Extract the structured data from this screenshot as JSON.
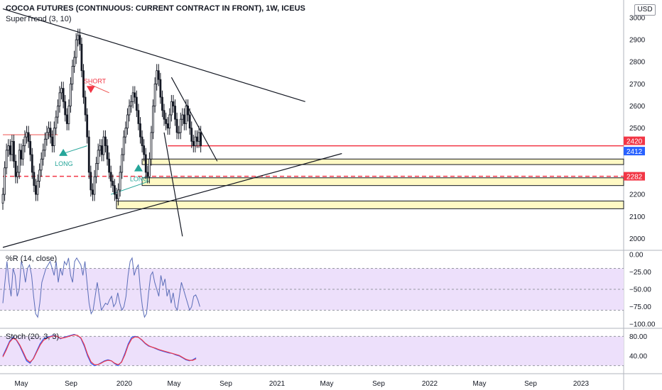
{
  "header": {
    "title": "COCOA FUTURES (CONTINUOUS: CURRENT CONTRACT IN FRONT), 1W, ICEUS",
    "indicator": "SuperTrend (3, 10)",
    "currency": "USD"
  },
  "colors": {
    "up": "#26a69a",
    "down": "#ef5350",
    "candle": "#131722",
    "willr": "#5b6db8",
    "stoch_k": "#2962ff",
    "stoch_d": "#f23645",
    "band": "#ede0fb"
  },
  "chart_data": [
    {
      "type": "candlestick",
      "pane": "price",
      "ylim": [
        1950,
        3080
      ],
      "yticks": [
        2000,
        2100,
        2200,
        2300,
        2400,
        2500,
        2600,
        2700,
        2800,
        2900,
        3000
      ],
      "ytick_labels": [
        "2000",
        "2100",
        "2200",
        "",
        "",
        "2500",
        "2600",
        "2700",
        "2800",
        "2900",
        "3000"
      ],
      "xaxis_labels": [
        "May",
        "Sep",
        "2020",
        "May",
        "Sep",
        "2021",
        "May",
        "Sep",
        "2022",
        "May",
        "Sep",
        "2023"
      ],
      "price_labels": [
        {
          "value": 2420,
          "label": "2420",
          "color": "#f23645"
        },
        {
          "value": 2412,
          "label": "2412",
          "color": "#2962ff"
        },
        {
          "value": 2282,
          "label": "2282",
          "color": "#f23645"
        }
      ],
      "closes": [
        2200,
        2320,
        2400,
        2420,
        2380,
        2440,
        2350,
        2280,
        2300,
        2400,
        2360,
        2420,
        2460,
        2480,
        2440,
        2380,
        2300,
        2240,
        2200,
        2260,
        2310,
        2360,
        2400,
        2450,
        2480,
        2500,
        2460,
        2420,
        2500,
        2550,
        2600,
        2660,
        2680,
        2620,
        2560,
        2520,
        2600,
        2700,
        2780,
        2820,
        2900,
        2920,
        2880,
        2760,
        2640,
        2560,
        2460,
        2300,
        2220,
        2200,
        2280,
        2340,
        2400,
        2420,
        2380,
        2460,
        2420,
        2360,
        2300,
        2260,
        2240,
        2200,
        2180,
        2220,
        2300,
        2380,
        2460,
        2500,
        2560,
        2600,
        2620,
        2660,
        2640,
        2580,
        2520,
        2460,
        2420,
        2380,
        2300,
        2280,
        2360,
        2480,
        2600,
        2700,
        2760,
        2720,
        2640,
        2580,
        2540,
        2520,
        2500,
        2560,
        2620,
        2600,
        2540,
        2480,
        2480,
        2540,
        2560,
        2520,
        2600,
        2560,
        2500,
        2440,
        2420,
        2460,
        2440,
        2480,
        2420
      ],
      "supertrend": [
        {
          "x": 0,
          "v": 2470,
          "trend": "down"
        },
        {
          "x": 30,
          "v": 2470,
          "trend": "down"
        },
        {
          "x": 31,
          "v": 2380,
          "trend": "up"
        },
        {
          "x": 46,
          "v": 2420,
          "trend": "up"
        },
        {
          "x": 47,
          "v": 2700,
          "trend": "down"
        },
        {
          "x": 58,
          "v": 2660,
          "trend": "down"
        },
        {
          "x": 59,
          "v": 2200,
          "trend": "up"
        },
        {
          "x": 80,
          "v": 2260,
          "trend": "up"
        }
      ],
      "signals": [
        {
          "x": 33,
          "v": 2400,
          "label": "LONG",
          "type": "long"
        },
        {
          "x": 48,
          "v": 2710,
          "label": "SHORT",
          "type": "short"
        },
        {
          "x": 74,
          "v": 2330,
          "label": "LONG",
          "type": "long"
        }
      ],
      "trendlines": [
        {
          "from": [
            0,
            3040
          ],
          "to": [
            165,
            2620
          ]
        },
        {
          "from": [
            0,
            1960
          ],
          "to": [
            185,
            2385
          ]
        },
        {
          "from": [
            92,
            2730
          ],
          "to": [
            117,
            2350
          ]
        },
        {
          "from": [
            88,
            2480
          ],
          "to": [
            98,
            2010
          ]
        }
      ],
      "levels": [
        {
          "y": 2420,
          "from": 90,
          "to": 190,
          "color": "#f23645",
          "style": "solid"
        },
        {
          "y": 2282,
          "from": 0,
          "to": 190,
          "color": "#f23645",
          "style": "dashed"
        }
      ],
      "zones": [
        {
          "y1": 2335,
          "y2": 2360,
          "from": 76,
          "to": 190
        },
        {
          "y1": 2240,
          "y2": 2275,
          "from": 76,
          "to": 190
        },
        {
          "y1": 2135,
          "y2": 2170,
          "from": 62,
          "to": 190
        }
      ]
    },
    {
      "type": "line",
      "pane": "willr",
      "label": "%R (14, close)",
      "ylim": [
        -105,
        5
      ],
      "yticks": [
        0,
        -25,
        -50,
        -75,
        -100
      ],
      "ytick_labels": [
        "0.00",
        "−25.00",
        "−50.00",
        "−75.00",
        "−100.00"
      ],
      "band": [
        -20,
        -80
      ],
      "values": [
        -70,
        -40,
        -10,
        -40,
        -60,
        -20,
        -30,
        -60,
        -50,
        -10,
        -20,
        -40,
        -20,
        -15,
        -30,
        -60,
        -85,
        -90,
        -70,
        -40,
        -30,
        -20,
        -15,
        -10,
        -20,
        -30,
        -10,
        -40,
        -20,
        -30,
        -10,
        -15,
        -5,
        -30,
        -40,
        -10,
        -5,
        -10,
        -15,
        -30,
        -10,
        -40,
        -70,
        -85,
        -80,
        -60,
        -40,
        -60,
        -80,
        -75,
        -70,
        -72,
        -65,
        -60,
        -75,
        -70,
        -55,
        -70,
        -80,
        -75,
        -60,
        -30,
        -10,
        -5,
        -30,
        -20,
        -15,
        -50,
        -75,
        -90,
        -85,
        -55,
        -30,
        -25,
        -40,
        -50,
        -60,
        -30,
        -45,
        -35,
        -60,
        -50,
        -70,
        -55,
        -75,
        -80,
        -60,
        -40,
        -50,
        -60,
        -70,
        -80,
        -75,
        -60,
        -58,
        -65,
        -75
      ]
    },
    {
      "type": "line",
      "pane": "stoch",
      "label": "Stoch (20, 3, 3)",
      "ylim": [
        5,
        95
      ],
      "yticks": [
        80,
        40
      ],
      "ytick_labels": [
        "80.00",
        "40.00"
      ],
      "band": [
        80,
        20
      ],
      "series": [
        {
          "name": "K",
          "values": [
            40,
            55,
            70,
            78,
            72,
            60,
            45,
            30,
            25,
            35,
            50,
            65,
            75,
            78,
            80,
            82,
            80,
            75,
            78,
            80,
            82,
            84,
            82,
            76,
            60,
            40,
            25,
            20,
            22,
            26,
            30,
            32,
            30,
            24,
            20,
            28,
            45,
            65,
            78,
            80,
            78,
            72,
            65,
            60,
            58,
            55,
            52,
            50,
            48,
            46,
            45,
            42,
            40,
            36,
            32,
            30,
            32,
            36
          ]
        },
        {
          "name": "D",
          "values": [
            38,
            52,
            68,
            76,
            73,
            62,
            48,
            33,
            27,
            34,
            48,
            62,
            72,
            76,
            79,
            81,
            80,
            76,
            77,
            79,
            81,
            83,
            82,
            77,
            63,
            43,
            28,
            22,
            22,
            25,
            29,
            31,
            30,
            25,
            22,
            27,
            42,
            62,
            75,
            79,
            78,
            73,
            66,
            61,
            58,
            56,
            53,
            51,
            49,
            47,
            45,
            43,
            41,
            37,
            33,
            31,
            31,
            34
          ]
        }
      ]
    }
  ]
}
